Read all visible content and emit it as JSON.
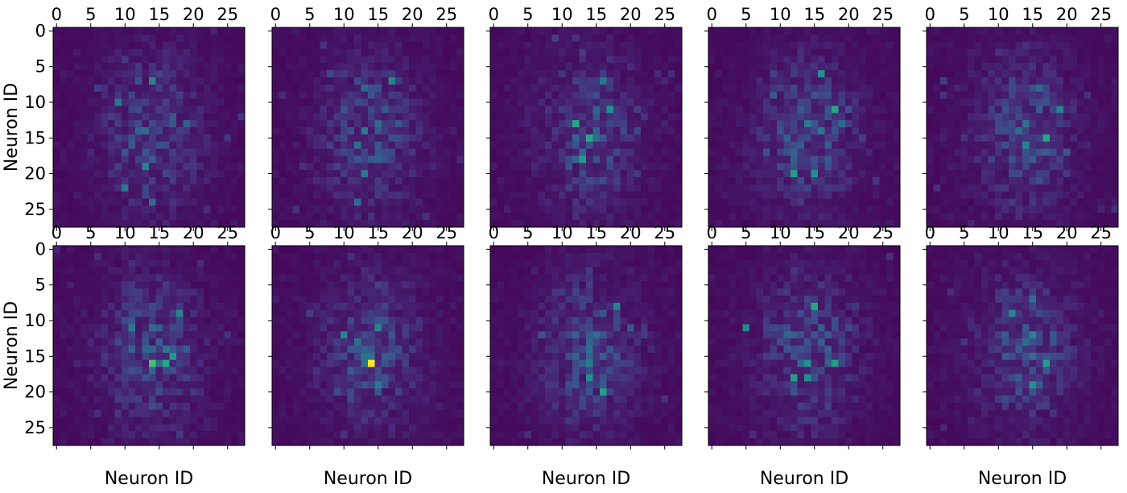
{
  "chart_data": {
    "type": "heatmap",
    "grid": {
      "rows": 2,
      "cols": 5
    },
    "matrix_size": 28,
    "colormap": "viridis",
    "x_ticks": [
      "0",
      "5",
      "10",
      "15",
      "20",
      "25"
    ],
    "y_ticks": [
      "0",
      "5",
      "10",
      "15",
      "20",
      "25"
    ],
    "x_tick_position": "top",
    "x_label": "Neuron ID",
    "y_label": "Neuron ID",
    "x_label_placement": "bottom row only",
    "y_label_placement": "left column only",
    "panels": [
      {
        "row": 0,
        "col": 0,
        "hotspots": [
          {
            "r": 7,
            "c": 14,
            "v": 0.45
          },
          {
            "r": 10,
            "c": 9,
            "v": 0.4
          },
          {
            "r": 14,
            "c": 13,
            "v": 0.35
          },
          {
            "r": 19,
            "c": 13,
            "v": 0.45
          },
          {
            "r": 22,
            "c": 10,
            "v": 0.4
          },
          {
            "r": 24,
            "c": 14,
            "v": 0.35
          }
        ]
      },
      {
        "row": 0,
        "col": 1,
        "hotspots": [
          {
            "r": 7,
            "c": 17,
            "v": 0.45
          },
          {
            "r": 14,
            "c": 13,
            "v": 0.4
          },
          {
            "r": 20,
            "c": 13,
            "v": 0.4
          },
          {
            "r": 24,
            "c": 12,
            "v": 0.35
          }
        ]
      },
      {
        "row": 0,
        "col": 2,
        "hotspots": [
          {
            "r": 13,
            "c": 12,
            "v": 0.6
          },
          {
            "r": 15,
            "c": 14,
            "v": 0.6
          },
          {
            "r": 18,
            "c": 13,
            "v": 0.55
          },
          {
            "r": 11,
            "c": 17,
            "v": 0.5
          },
          {
            "r": 7,
            "c": 16,
            "v": 0.4
          }
        ]
      },
      {
        "row": 0,
        "col": 3,
        "hotspots": [
          {
            "r": 11,
            "c": 18,
            "v": 0.6
          },
          {
            "r": 6,
            "c": 16,
            "v": 0.5
          },
          {
            "r": 20,
            "c": 12,
            "v": 0.55
          },
          {
            "r": 20,
            "c": 15,
            "v": 0.5
          },
          {
            "r": 13,
            "c": 14,
            "v": 0.4
          }
        ]
      },
      {
        "row": 0,
        "col": 4,
        "hotspots": [
          {
            "r": 15,
            "c": 17,
            "v": 0.6
          },
          {
            "r": 11,
            "c": 19,
            "v": 0.45
          },
          {
            "r": 16,
            "c": 14,
            "v": 0.45
          },
          {
            "r": 8,
            "c": 16,
            "v": 0.35
          }
        ]
      },
      {
        "row": 1,
        "col": 0,
        "hotspots": [
          {
            "r": 16,
            "c": 14,
            "v": 0.7
          },
          {
            "r": 16,
            "c": 16,
            "v": 0.6
          },
          {
            "r": 15,
            "c": 17,
            "v": 0.55
          },
          {
            "r": 9,
            "c": 18,
            "v": 0.45
          },
          {
            "r": 11,
            "c": 11,
            "v": 0.4
          }
        ]
      },
      {
        "row": 1,
        "col": 1,
        "hotspots": [
          {
            "r": 16,
            "c": 14,
            "v": 1.0
          },
          {
            "r": 12,
            "c": 10,
            "v": 0.45
          },
          {
            "r": 11,
            "c": 15,
            "v": 0.45
          },
          {
            "r": 19,
            "c": 15,
            "v": 0.4
          }
        ]
      },
      {
        "row": 1,
        "col": 2,
        "hotspots": [
          {
            "r": 18,
            "c": 14,
            "v": 0.5
          },
          {
            "r": 20,
            "c": 16,
            "v": 0.55
          },
          {
            "r": 8,
            "c": 18,
            "v": 0.45
          },
          {
            "r": 12,
            "c": 15,
            "v": 0.35
          }
        ]
      },
      {
        "row": 1,
        "col": 3,
        "hotspots": [
          {
            "r": 8,
            "c": 15,
            "v": 0.6
          },
          {
            "r": 16,
            "c": 18,
            "v": 0.55
          },
          {
            "r": 18,
            "c": 12,
            "v": 0.55
          },
          {
            "r": 18,
            "c": 14,
            "v": 0.5
          },
          {
            "r": 11,
            "c": 5,
            "v": 0.45
          },
          {
            "r": 16,
            "c": 14,
            "v": 0.5
          }
        ]
      },
      {
        "row": 1,
        "col": 4,
        "hotspots": [
          {
            "r": 16,
            "c": 17,
            "v": 0.55
          },
          {
            "r": 19,
            "c": 15,
            "v": 0.5
          },
          {
            "r": 9,
            "c": 12,
            "v": 0.45
          },
          {
            "r": 12,
            "c": 15,
            "v": 0.45
          },
          {
            "r": 7,
            "c": 15,
            "v": 0.35
          }
        ]
      }
    ]
  }
}
